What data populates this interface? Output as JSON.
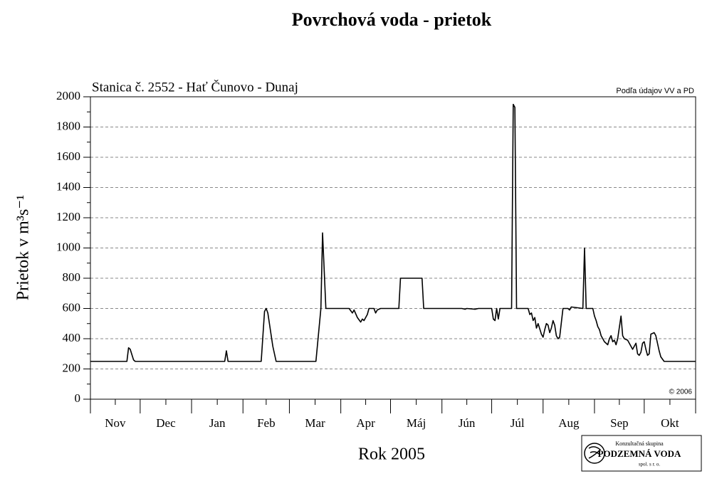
{
  "chart_data": {
    "type": "line",
    "title": "Povrchová voda - prietok",
    "subtitle": "Stanica č. 2552 - Hať Čunovo - Dunaj",
    "source": "Podľa údajov VV a PD",
    "copyright": "© 2006",
    "x_label": "Rok 2005",
    "y_label": "Prietok v m³s⁻¹",
    "categories": [
      "Nov",
      "Dec",
      "Jan",
      "Feb",
      "Mar",
      "Apr",
      "Máj",
      "Jún",
      "Júl",
      "Aug",
      "Sep",
      "Okt"
    ],
    "xticks": [
      0,
      30,
      61,
      92,
      120,
      151,
      181,
      212,
      242,
      273,
      304,
      334,
      365
    ],
    "xlim": [
      0,
      365
    ],
    "ylim": [
      0,
      2000
    ],
    "yticks": [
      0,
      200,
      400,
      600,
      800,
      1000,
      1200,
      1400,
      1600,
      1800,
      2000
    ],
    "grid": true,
    "color": "#000000",
    "x": [
      0,
      22,
      23,
      24,
      26,
      27,
      81,
      82,
      83,
      103,
      105,
      106,
      107,
      110,
      112,
      136,
      139,
      140,
      142,
      156,
      158,
      159,
      161,
      163,
      164,
      165,
      167,
      168,
      171,
      172,
      173,
      175,
      186,
      187,
      200,
      201,
      224,
      226,
      227,
      232,
      234,
      242,
      243,
      244,
      245,
      246,
      247,
      250,
      254,
      255,
      256,
      257,
      264,
      265,
      266,
      267,
      268,
      269,
      270,
      272,
      273,
      274,
      275,
      276,
      277,
      278,
      279,
      280,
      281,
      282,
      283,
      285,
      288,
      289,
      290,
      297,
      298,
      299,
      303,
      304,
      305,
      306,
      307,
      308,
      309,
      310,
      311,
      312,
      313,
      314,
      315,
      316,
      317,
      318,
      320,
      321,
      322,
      324,
      325,
      327,
      328,
      329,
      330,
      331,
      332,
      333,
      334,
      335,
      336,
      337,
      338,
      340,
      341,
      343,
      344,
      346,
      365
    ],
    "values": [
      250,
      250,
      340,
      330,
      260,
      250,
      250,
      320,
      250,
      250,
      580,
      600,
      570,
      350,
      250,
      250,
      600,
      1100,
      600,
      600,
      570,
      590,
      540,
      510,
      530,
      520,
      560,
      600,
      600,
      570,
      590,
      600,
      600,
      800,
      800,
      600,
      600,
      595,
      600,
      595,
      600,
      600,
      530,
      520,
      600,
      530,
      600,
      600,
      600,
      1950,
      1930,
      600,
      600,
      560,
      570,
      520,
      540,
      470,
      500,
      430,
      410,
      460,
      500,
      490,
      440,
      470,
      520,
      490,
      420,
      400,
      410,
      600,
      600,
      590,
      610,
      600,
      1000,
      600,
      600,
      550,
      520,
      480,
      460,
      420,
      400,
      380,
      370,
      360,
      400,
      420,
      380,
      390,
      360,
      400,
      550,
      420,
      400,
      390,
      370,
      330,
      350,
      370,
      300,
      290,
      310,
      370,
      380,
      330,
      290,
      300,
      430,
      440,
      420,
      320,
      280,
      250,
      250
    ]
  },
  "logo": {
    "line1": "Konzultačná skupina",
    "line2": "PODZEMNÁ VODA",
    "line3": "spol. s r. o."
  }
}
